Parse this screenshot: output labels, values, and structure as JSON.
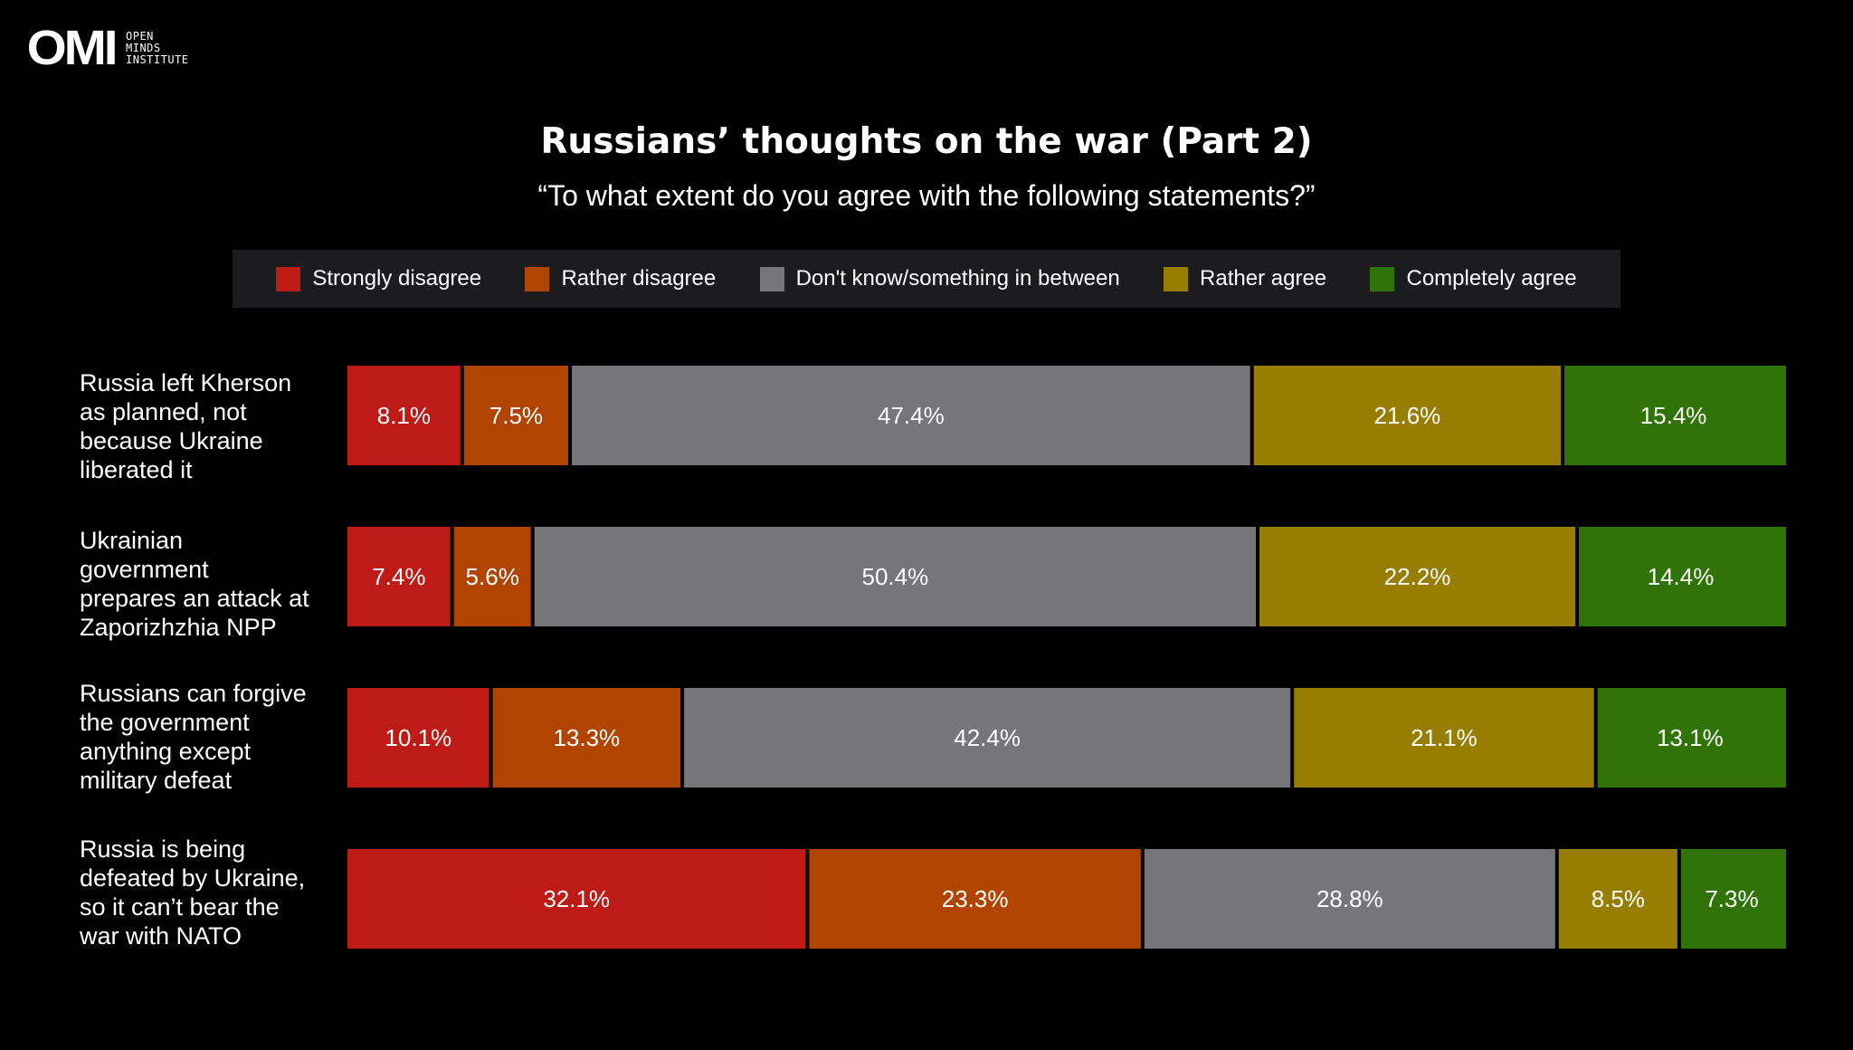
{
  "logo": {
    "mark": "OMI",
    "line1": "OPEN",
    "line2": "MINDS",
    "line3": "INSTITUTE"
  },
  "chart_data": {
    "type": "bar",
    "orientation": "horizontal",
    "stacked": true,
    "percent_stacked": true,
    "title": "Russians’ thoughts on the war (Part 2)",
    "subtitle": "“To what extent do you agree with the following statements?”",
    "legend_position": "top",
    "categories": [
      "Russia left Kherson\nas planned, not\nbecause Ukraine\nliberated it",
      "Ukrainian\ngovernment\nprepares an attack at\nZaporizhzhia NPP",
      "Russians can forgive\nthe government\nanything except\nmilitary defeat",
      "Russia is being\ndefeated by Ukraine,\nso it can’t bear the\nwar with NATO"
    ],
    "series": [
      {
        "name": "Strongly disagree",
        "color": "#be1a16",
        "values": [
          8.1,
          7.4,
          10.1,
          32.1
        ],
        "labels": [
          "8.1%",
          "7.4%",
          "10.1%",
          "32.1%"
        ]
      },
      {
        "name": "Rather disagree",
        "color": "#b24401",
        "values": [
          7.5,
          5.6,
          13.3,
          23.3
        ],
        "labels": [
          "7.5%",
          "5.6%",
          "13.3%",
          "23.3%"
        ]
      },
      {
        "name": "Don't know/something in between",
        "color": "#767578",
        "values": [
          47.4,
          50.4,
          42.4,
          28.8
        ],
        "labels": [
          "47.4%",
          "50.4%",
          "42.4%",
          "28.8%"
        ]
      },
      {
        "name": "Rather agree",
        "color": "#977e02",
        "values": [
          21.6,
          22.2,
          21.1,
          8.5
        ],
        "labels": [
          "21.6%",
          "22.2%",
          "21.1%",
          "8.5%"
        ]
      },
      {
        "name": "Completely agree",
        "color": "#307307",
        "values": [
          15.4,
          14.4,
          13.1,
          7.3
        ],
        "labels": [
          "15.4%",
          "14.4%",
          "13.1%",
          "7.3%"
        ]
      }
    ]
  }
}
